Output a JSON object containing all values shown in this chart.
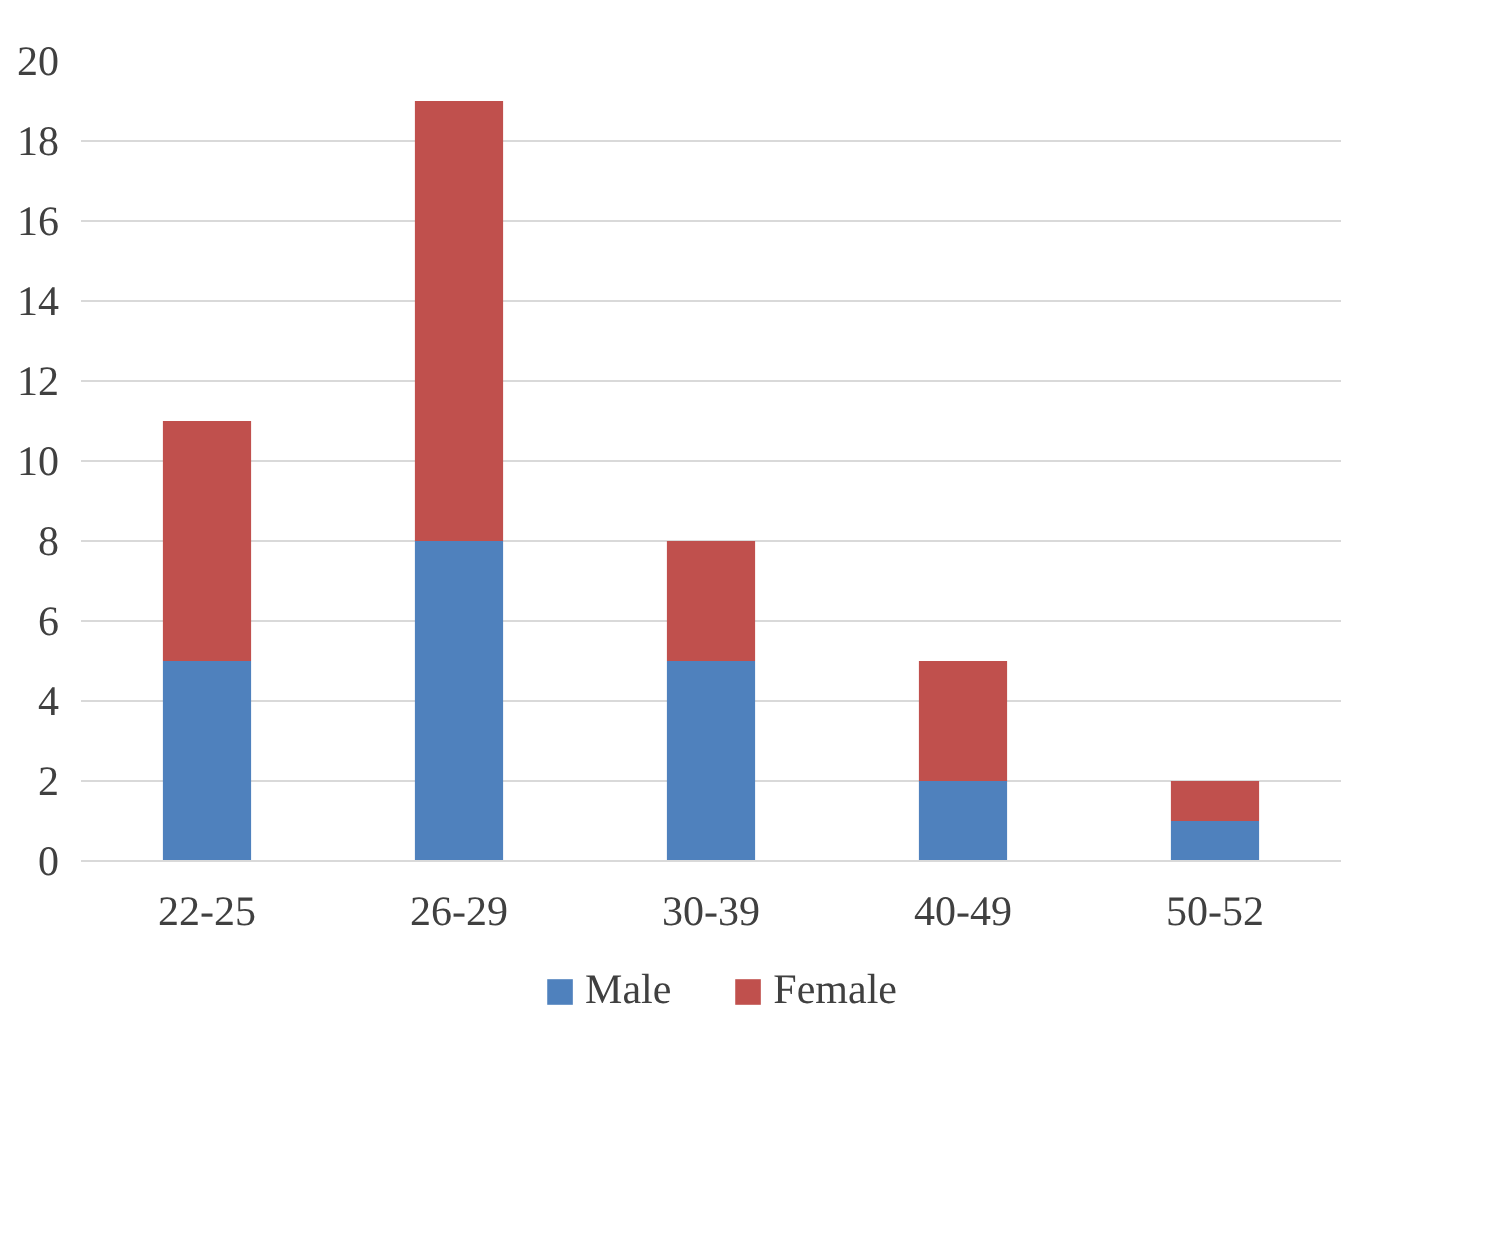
{
  "chart_data": {
    "type": "bar",
    "stacked": true,
    "categories": [
      "22-25",
      "26-29",
      "30-39",
      "40-49",
      "50-52"
    ],
    "series": [
      {
        "name": "Male",
        "color": "#4f81bd",
        "values": [
          5,
          8,
          5,
          2,
          1
        ]
      },
      {
        "name": "Female",
        "color": "#c0504d",
        "values": [
          6,
          11,
          3,
          3,
          1
        ]
      }
    ],
    "ylim": [
      0,
      20
    ],
    "yticks": [
      0,
      2,
      4,
      6,
      8,
      10,
      12,
      14,
      16,
      18,
      20
    ],
    "grid": "y",
    "legend": "bottom"
  }
}
